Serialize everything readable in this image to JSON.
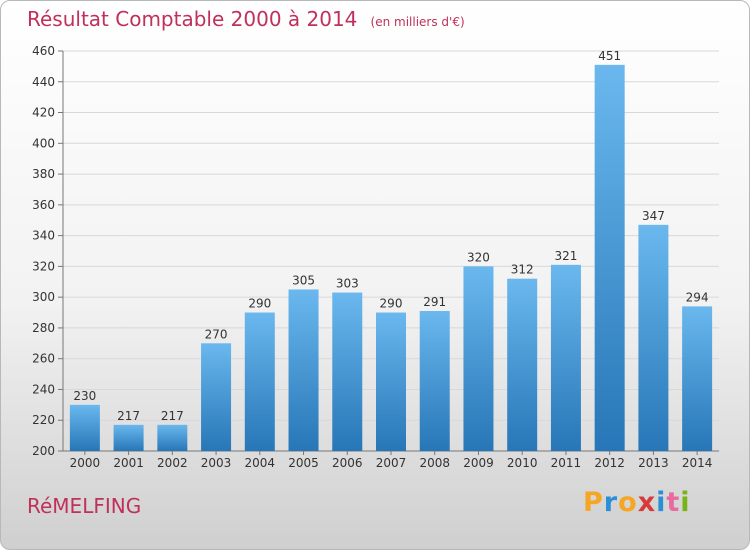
{
  "title": "Résultat Comptable 2000 à 2014",
  "unit": "(en milliers d'€)",
  "city": "RéMELFING",
  "logo": {
    "letters": [
      "P",
      "r",
      "o",
      "x",
      "i",
      "t",
      "i"
    ],
    "colors": [
      "#f5a623",
      "#2b8fd6",
      "#f5a623",
      "#d83a3a",
      "#2b8fd6",
      "#e86aa0",
      "#7ab317"
    ]
  },
  "colors": {
    "bar_top": "#6ab8ee",
    "bar_bottom": "#2776b7",
    "title": "#c0305a",
    "grid": "#d8d8d8"
  },
  "chart_data": {
    "type": "bar",
    "categories": [
      "2000",
      "2001",
      "2002",
      "2003",
      "2004",
      "2005",
      "2006",
      "2007",
      "2008",
      "2009",
      "2010",
      "2011",
      "2012",
      "2013",
      "2014"
    ],
    "values": [
      230,
      217,
      217,
      270,
      290,
      305,
      303,
      290,
      291,
      320,
      312,
      321,
      451,
      347,
      294
    ],
    "ylim": [
      200,
      460
    ],
    "yticks": [
      200,
      220,
      240,
      260,
      280,
      300,
      320,
      340,
      360,
      380,
      400,
      420,
      440,
      460
    ],
    "grid": true
  }
}
